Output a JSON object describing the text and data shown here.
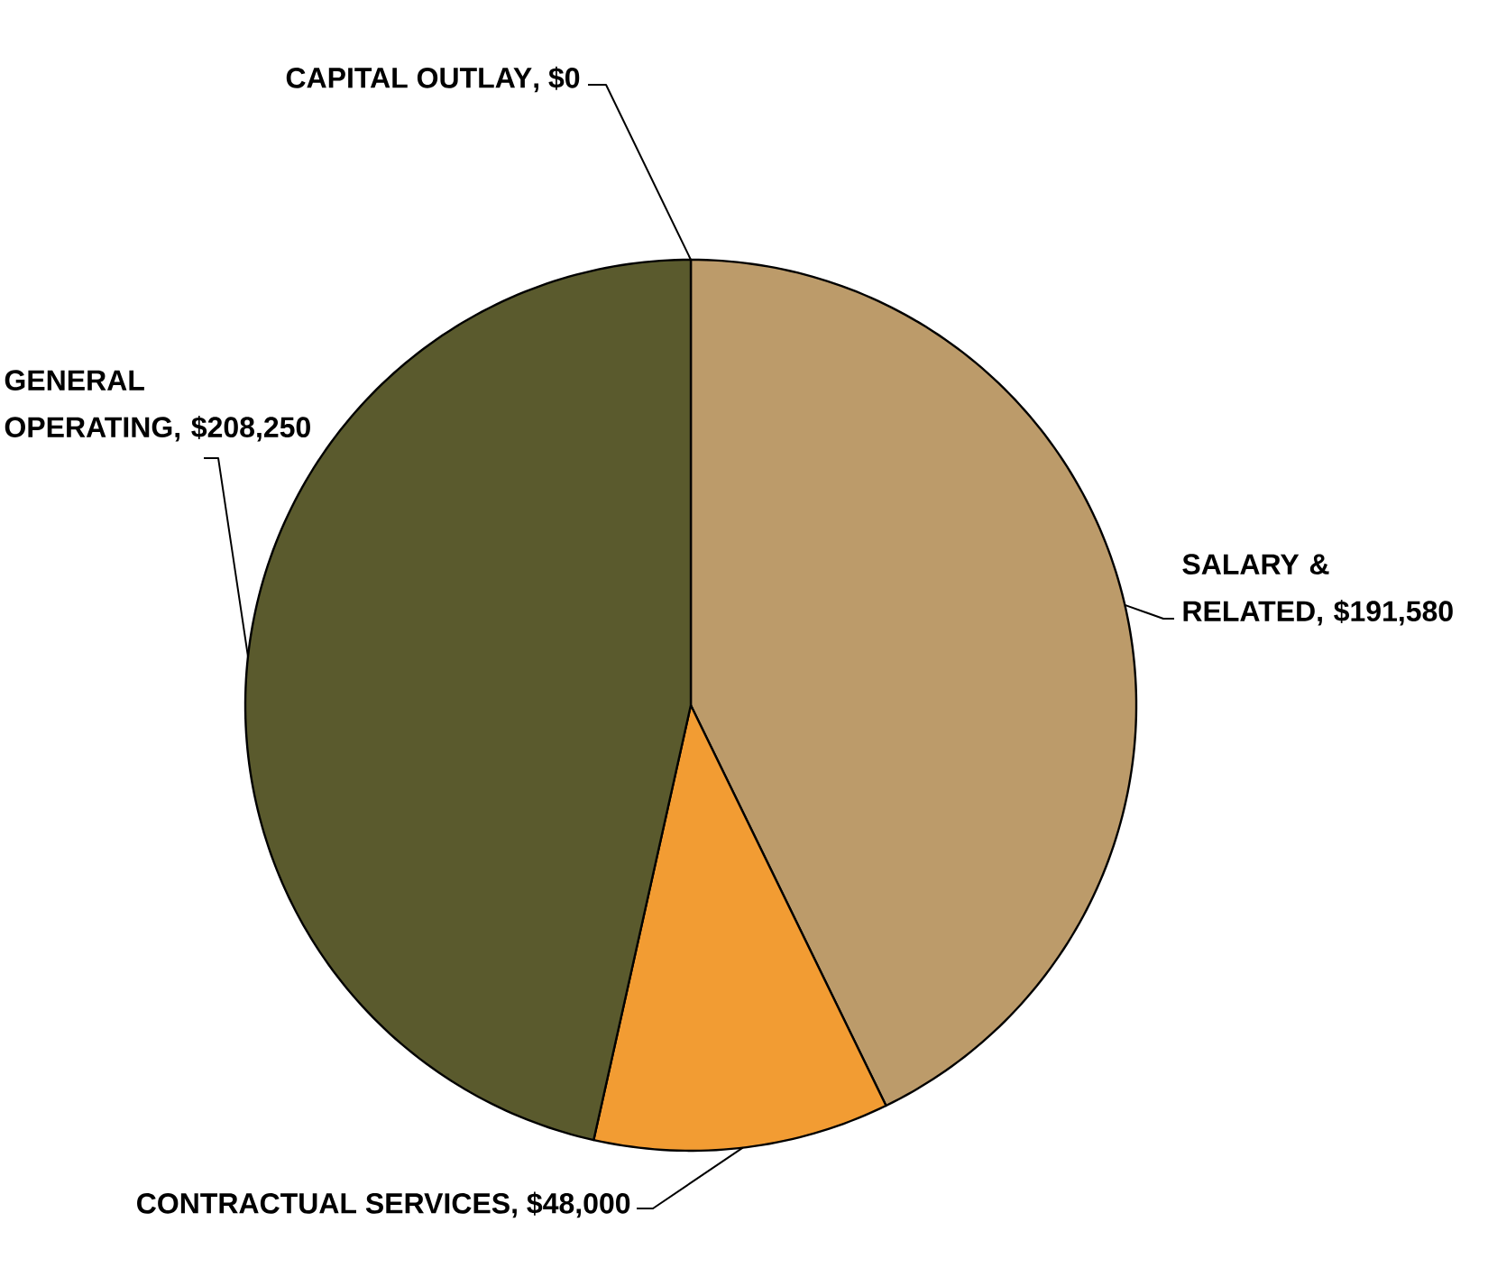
{
  "chart_data": {
    "type": "pie",
    "categories": [
      "SALARY & RELATED",
      "CONTRACTUAL SERVICES",
      "GENERAL OPERATING",
      "CAPITAL OUTLAY"
    ],
    "values": [
      191580,
      48000,
      208250,
      0
    ],
    "value_labels": [
      ", $191,580",
      ", $48,000",
      ", $208,250",
      ", $0"
    ],
    "colors": [
      "#bc9b6a",
      "#f29c33",
      "#5a5a2d",
      null
    ]
  }
}
